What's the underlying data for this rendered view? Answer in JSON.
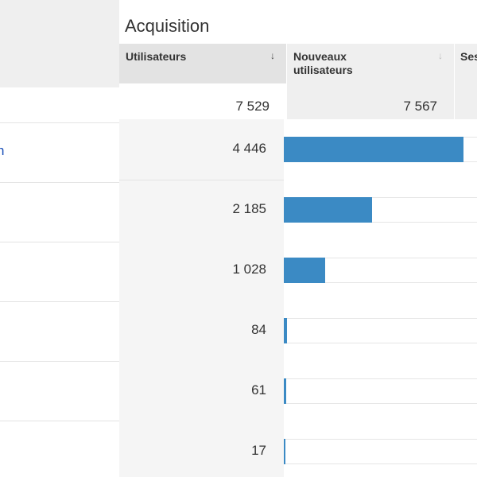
{
  "section_title": "Acquisition",
  "left_panel": {
    "link_fragment": "n"
  },
  "columns": {
    "utilisateurs": {
      "label": "Utilisateurs",
      "sort_icon": "arrow-down-icon",
      "total": "7 529"
    },
    "nouveaux": {
      "label_line1": "Nouveaux",
      "label_line2": "utilisateurs",
      "sort_icon": "arrow-down-icon",
      "total": "7 567"
    },
    "sessions": {
      "label": "Ses"
    }
  },
  "rows": [
    {
      "value": "4 446",
      "share": 0.59
    },
    {
      "value": "2 185",
      "share": 0.29
    },
    {
      "value": "1 028",
      "share": 0.137
    },
    {
      "value": "84",
      "share": 0.011
    },
    {
      "value": "61",
      "share": 0.008
    },
    {
      "value": "17",
      "share": 0.0023
    }
  ],
  "colors": {
    "bar": "#3b8ac4",
    "link": "#1a4fb8"
  }
}
